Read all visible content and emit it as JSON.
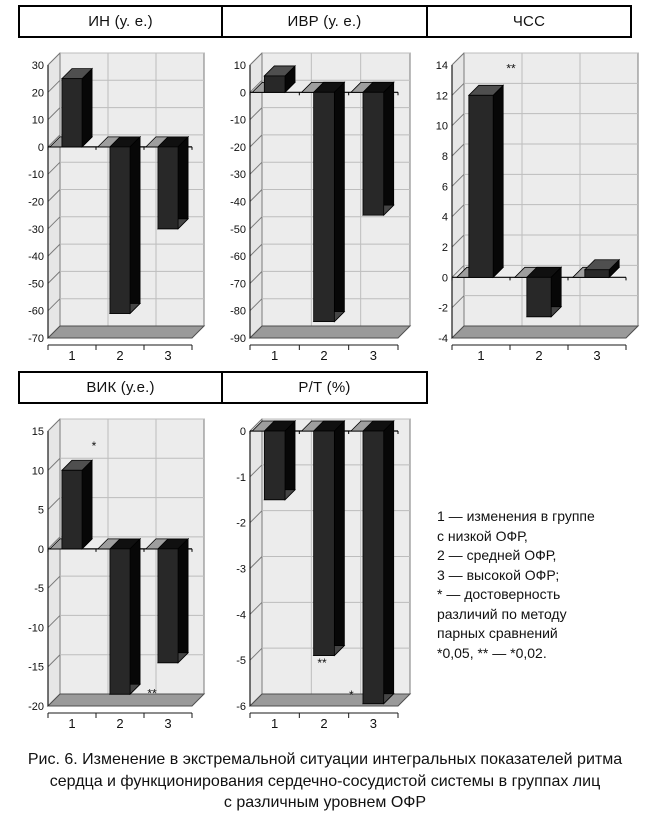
{
  "panel_titles": [
    "ИН (у. е.)",
    "ИВР (у. е.)",
    "ЧСС",
    "ВИК (у.е.)",
    "Р/Т (%)"
  ],
  "chart_data": [
    {
      "type": "bar",
      "title": "ИН (у. е.)",
      "categories": [
        "1",
        "2",
        "3"
      ],
      "values": [
        25,
        -61,
        -30
      ],
      "ylim": [
        -70,
        30
      ],
      "ystep": 10,
      "grid": true,
      "legend_position": "none",
      "annotations": []
    },
    {
      "type": "bar",
      "title": "ИВР (у. е.)",
      "categories": [
        "1",
        "2",
        "3"
      ],
      "values": [
        6,
        -84,
        -45
      ],
      "ylim": [
        -90,
        10
      ],
      "ystep": 10,
      "grid": true,
      "legend_position": "none",
      "annotations": []
    },
    {
      "type": "bar",
      "title": "ЧСС",
      "categories": [
        "1",
        "2",
        "3"
      ],
      "values": [
        12,
        -2.6,
        0.5
      ],
      "ylim": [
        -4,
        14
      ],
      "ystep": 2,
      "grid": true,
      "legend_position": "none",
      "annotations": [
        {
          "text": "**",
          "cat": 1,
          "value": 13.5,
          "dx": 30
        }
      ]
    },
    {
      "type": "bar",
      "title": "ВИК (у.е.)",
      "categories": [
        "1",
        "2",
        "3"
      ],
      "values": [
        10,
        -18.5,
        -14.5
      ],
      "ylim": [
        -20,
        15
      ],
      "ystep": 5,
      "grid": true,
      "legend_position": "none",
      "annotations": [
        {
          "text": "*",
          "cat": 1,
          "value": 12.6,
          "dx": 22
        },
        {
          "text": "**",
          "cat": 2,
          "value": -18.9,
          "dx": 32
        }
      ]
    },
    {
      "type": "bar",
      "title": "Р/Т (%)",
      "categories": [
        "1",
        "2",
        "3"
      ],
      "values": [
        -1.5,
        -4.9,
        -5.95
      ],
      "ylim": [
        -6,
        0
      ],
      "ystep": 1,
      "grid": true,
      "legend_position": "none",
      "annotations": [
        {
          "text": "**",
          "cat": 2,
          "value": -5.15,
          "dx": -2
        },
        {
          "text": "*",
          "cat": 3,
          "value": -5.85,
          "dx": -22
        }
      ]
    }
  ],
  "legend": {
    "lines": [
      "1 — изменения в группе",
      "с низкой ОФР,",
      "2 — средней ОФР,",
      "3 — высокой ОФР;",
      "* — достоверность",
      "различий по методу",
      "парных сравнений",
      "*0,05, ** — *0,02."
    ]
  },
  "caption": {
    "lines": [
      "Рис. 6. Изменение в экстремальной ситуации интегральных показателей ритма",
      "сердца и функционирования сердечно-сосудистой системы в группах лиц",
      "с различным уровнем ОФР"
    ]
  },
  "colors": {
    "wall": "#ececec",
    "side_wall": "#e6e6e6",
    "floor": "#9a9a9a",
    "floor_edge": "#4f4f4f",
    "grid": "#bdbdbd",
    "frame": "#7a7a7a",
    "axis": "#1a1a1a",
    "zero_line": "#000000",
    "bar_front": "#282828",
    "bar_side": "#070707",
    "bar_top": "#4f4f4f",
    "bar_bottom_cap": "#454545",
    "bar_zero_cap": "#101010",
    "tile": "#9e9e9e",
    "tile_edge": "#444444",
    "text": "#111111"
  }
}
